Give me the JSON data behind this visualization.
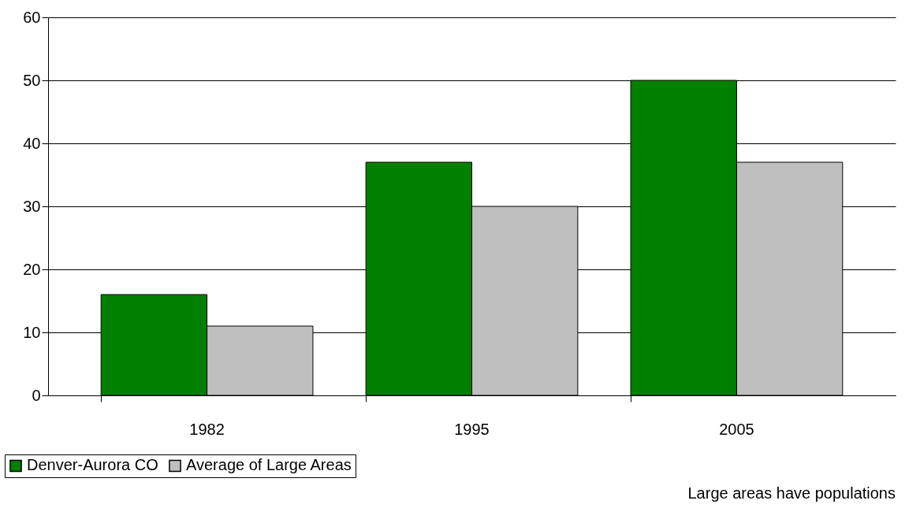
{
  "chart_data": {
    "type": "bar",
    "categories": [
      "1982",
      "1995",
      "2005"
    ],
    "series": [
      {
        "name": "Denver-Aurora CO",
        "color": "#008000",
        "values": [
          16,
          37,
          50
        ]
      },
      {
        "name": "Average of Large Areas",
        "color": "#bfbfbf",
        "values": [
          11,
          30,
          37
        ]
      }
    ],
    "ylim": [
      0,
      60
    ],
    "yticks": [
      0,
      10,
      20,
      30,
      40,
      50,
      60
    ],
    "grid": "y",
    "legend": "bottom left",
    "annotations": [
      "Large areas have populations"
    ]
  }
}
